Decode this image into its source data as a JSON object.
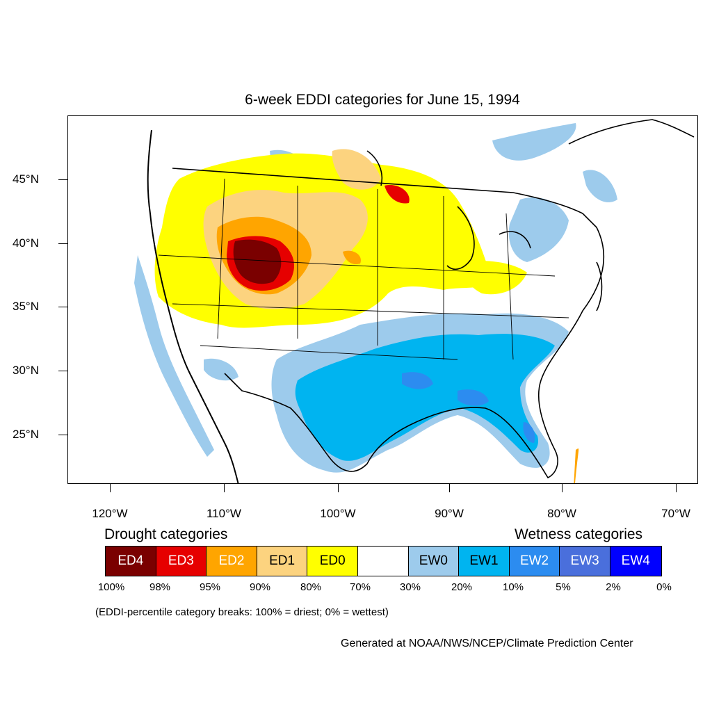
{
  "title": "6-week EDDI categories for June 15, 1994",
  "lat_labels": [
    "45°N",
    "40°N",
    "35°N",
    "30°N",
    "25°N"
  ],
  "lon_labels": [
    "120°W",
    "110°W",
    "100°W",
    "90°W",
    "80°W",
    "70°W"
  ],
  "legend": {
    "drought_heading": "Drought categories",
    "wetness_heading": "Wetness categories",
    "categories": [
      {
        "label": "ED4",
        "color": "#7a0000",
        "text_color": "#ffffff"
      },
      {
        "label": "ED3",
        "color": "#e60000",
        "text_color": "#ffffff"
      },
      {
        "label": "ED2",
        "color": "#ffa500",
        "text_color": "#ffffff"
      },
      {
        "label": "ED1",
        "color": "#fcd37f",
        "text_color": "#000000"
      },
      {
        "label": "ED0",
        "color": "#ffff00",
        "text_color": "#000000"
      },
      {
        "label": "",
        "color": "#ffffff",
        "text_color": "#000000"
      },
      {
        "label": "EW0",
        "color": "#9dcbec",
        "text_color": "#000000"
      },
      {
        "label": "EW1",
        "color": "#00b4f0",
        "text_color": "#000000"
      },
      {
        "label": "EW2",
        "color": "#2c8cf0",
        "text_color": "#ffffff"
      },
      {
        "label": "EW3",
        "color": "#4a6fdc",
        "text_color": "#ffffff"
      },
      {
        "label": "EW4",
        "color": "#0000ff",
        "text_color": "#ffffff"
      }
    ],
    "percentile_breaks": [
      "100%",
      "98%",
      "95%",
      "90%",
      "80%",
      "70%",
      "30%",
      "20%",
      "10%",
      "5%",
      "2%",
      "0%"
    ]
  },
  "note": "(EDDI-percentile category breaks: 100% = driest; 0% = wettest)",
  "credit": "Generated at NOAA/NWS/NCEP/Climate Prediction Center"
}
